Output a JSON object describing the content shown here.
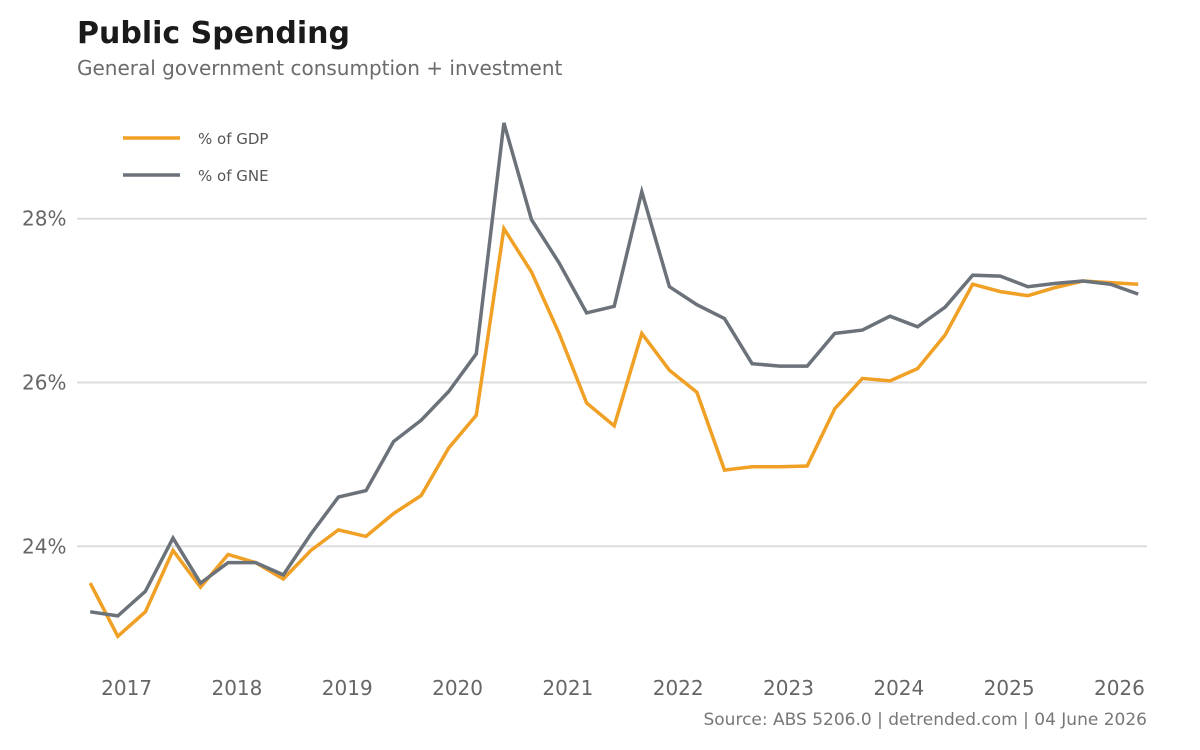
{
  "header": {
    "title": "Public Spending",
    "subtitle": "General government consumption + investment"
  },
  "footer": {
    "source": "Source: ABS 5206.0 | detrended.com | 04 June 2026"
  },
  "colors": {
    "gdp": "#f0a024",
    "gne": "#6c727a",
    "grid": "#dddddd"
  },
  "chart_data": {
    "type": "line",
    "title": "Public Spending",
    "subtitle": "General government consumption + investment",
    "xlabel": "",
    "ylabel": "",
    "grid": true,
    "legend_position": "top-left",
    "xlim": [
      2016.55,
      2026.25
    ],
    "ylim": [
      22.55,
      29.45
    ],
    "x_ticks": [
      2017,
      2018,
      2019,
      2020,
      2021,
      2022,
      2023,
      2024,
      2025,
      2026
    ],
    "x_tick_labels": [
      "2017",
      "2018",
      "2019",
      "2020",
      "2021",
      "2022",
      "2023",
      "2024",
      "2025",
      "2026"
    ],
    "y_ticks": [
      24,
      26,
      28
    ],
    "y_tick_labels": [
      "24%",
      "26%",
      "28%"
    ],
    "x": [
      2016.67,
      2016.92,
      2017.17,
      2017.42,
      2017.67,
      2017.92,
      2018.17,
      2018.42,
      2018.67,
      2018.92,
      2019.17,
      2019.42,
      2019.67,
      2019.92,
      2020.17,
      2020.42,
      2020.67,
      2020.92,
      2021.17,
      2021.42,
      2021.67,
      2021.92,
      2022.17,
      2022.42,
      2022.67,
      2022.92,
      2023.17,
      2023.42,
      2023.67,
      2023.92,
      2024.17,
      2024.42,
      2024.67,
      2024.92,
      2025.17,
      2025.42,
      2025.67,
      2025.92,
      2026.17
    ],
    "series": [
      {
        "name": "% of GDP",
        "color": "#f0a024",
        "values": [
          23.55,
          22.9,
          23.2,
          23.95,
          23.5,
          23.9,
          23.8,
          23.6,
          23.95,
          24.2,
          24.12,
          24.4,
          24.62,
          25.2,
          25.6,
          27.88,
          27.35,
          26.6,
          25.75,
          25.47,
          26.6,
          26.15,
          25.88,
          24.93,
          24.97,
          24.97,
          24.98,
          25.68,
          26.05,
          26.02,
          26.17,
          26.58,
          27.2,
          27.11,
          27.06,
          27.16,
          27.24,
          27.22,
          27.2
        ],
        "display_values": [
          "23.55",
          "22.9",
          "23.2",
          "23.95",
          "23.5",
          "23.9",
          "23.8",
          "23.6",
          "23.95",
          "24.2",
          "24.12",
          "24.4",
          "24.62",
          "25.2",
          "25.6",
          "27.88",
          "27.35",
          "26.6",
          "25.75",
          "25.47",
          "26.6",
          "26.15",
          "25.88",
          "24.93",
          "24.97",
          "24.97",
          "24.98",
          "25.68",
          "26.05",
          "26.02",
          "26.17",
          "26.58",
          "27.2",
          "27.11",
          "27.06",
          "27.16",
          "27.24",
          "27.22",
          "27.2"
        ]
      },
      {
        "name": "% of GNE",
        "color": "#6c727a",
        "values": [
          23.2,
          23.15,
          23.45,
          24.1,
          23.55,
          23.8,
          23.8,
          23.65,
          24.15,
          24.6,
          24.68,
          25.28,
          25.54,
          25.89,
          26.35,
          29.17,
          27.99,
          27.46,
          26.85,
          26.93,
          28.33,
          27.17,
          26.95,
          26.78,
          26.23,
          26.2,
          26.2,
          26.6,
          26.64,
          26.81,
          26.68,
          26.92,
          27.31,
          27.3,
          27.17,
          27.21,
          27.24,
          27.2,
          27.08
        ],
        "display_values": [
          "23.2",
          "23.15",
          "23.45",
          "24.1",
          "23.55",
          "23.8",
          "23.8",
          "23.65",
          "24.15",
          "24.6",
          "24.68",
          "25.28",
          "25.54",
          "25.89",
          "26.35",
          "29.17",
          "27.99",
          "27.46",
          "26.85",
          "26.93",
          "28.33",
          "27.17",
          "26.95",
          "26.78",
          "26.23",
          "26.2",
          "26.2",
          "26.6",
          "26.64",
          "26.81",
          "26.68",
          "26.92",
          "27.31",
          "27.3",
          "27.17",
          "27.21",
          "27.24",
          "27.2",
          "27.08"
        ]
      }
    ]
  }
}
